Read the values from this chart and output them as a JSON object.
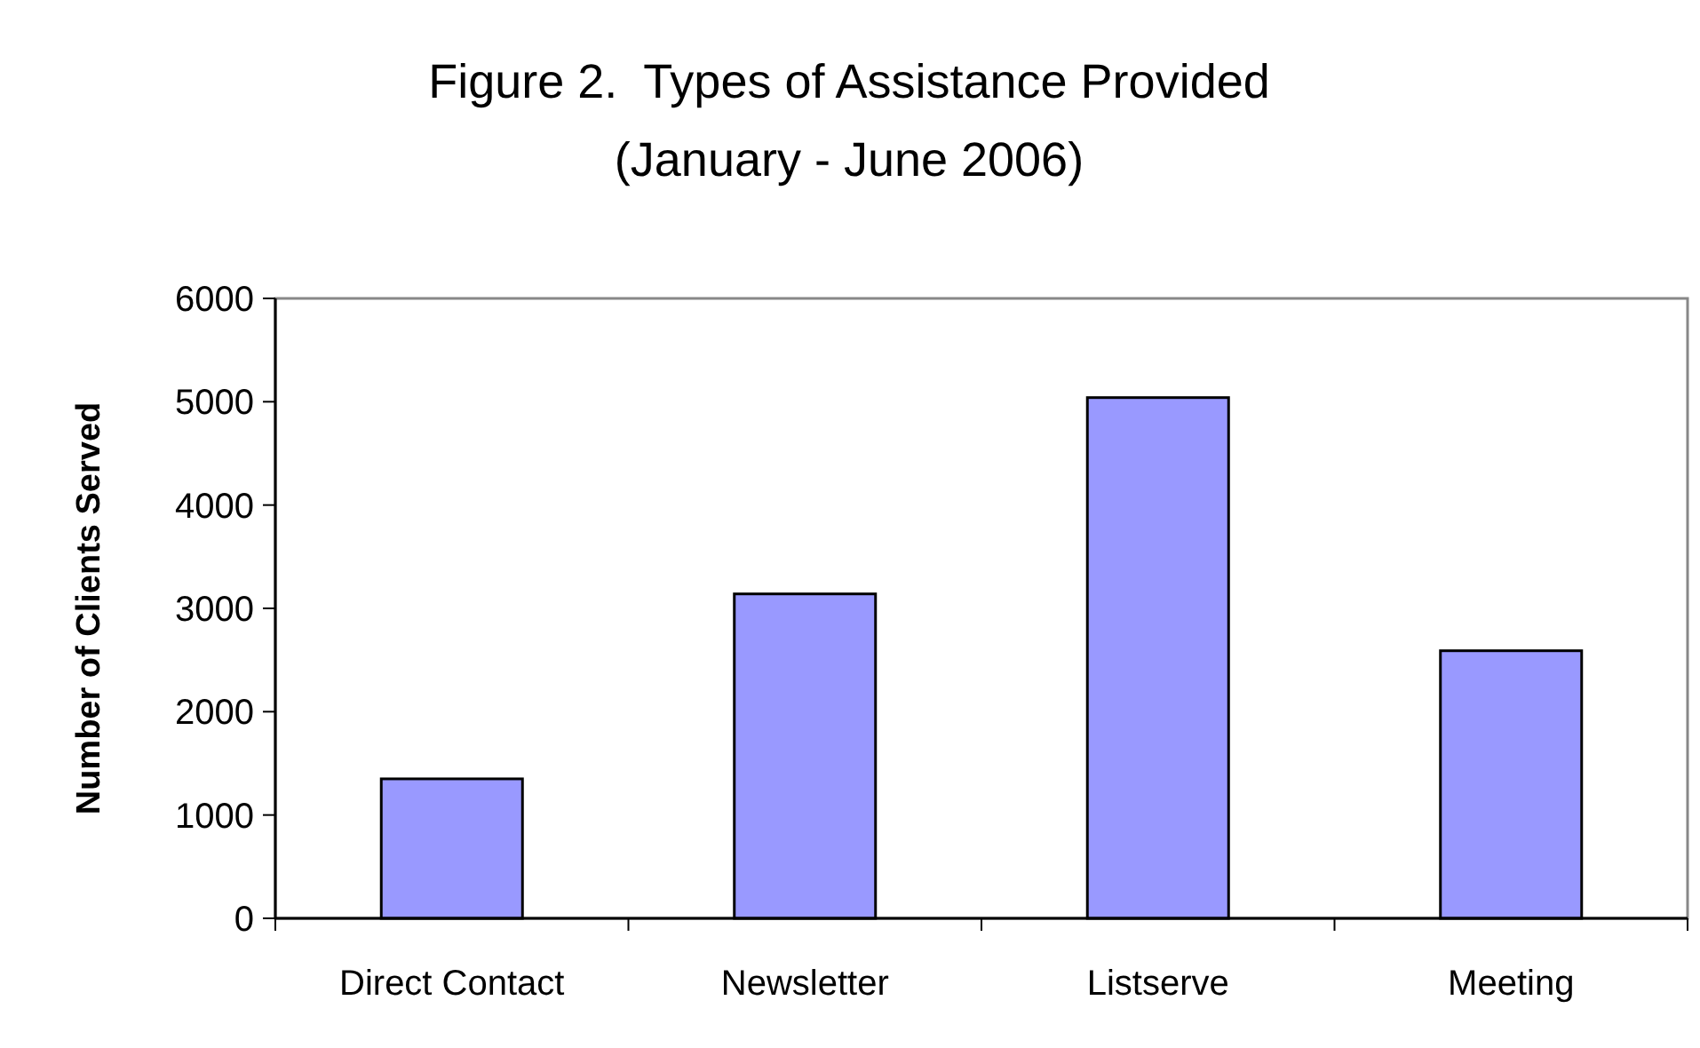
{
  "chart_data": {
    "type": "bar",
    "title": "Figure 2.  Types of Assistance Provided",
    "subtitle": "(January - June 2006)",
    "ylabel": "Number of Clients Served",
    "categories": [
      "Direct Contact",
      "Newsletter",
      "Listserve",
      "Meeting"
    ],
    "values": [
      1350,
      3140,
      5040,
      2590
    ],
    "color": "#9999ff",
    "ylim": [
      0,
      6000
    ],
    "yticks": [
      0,
      1000,
      2000,
      3000,
      4000,
      5000,
      6000
    ],
    "grid": false
  }
}
